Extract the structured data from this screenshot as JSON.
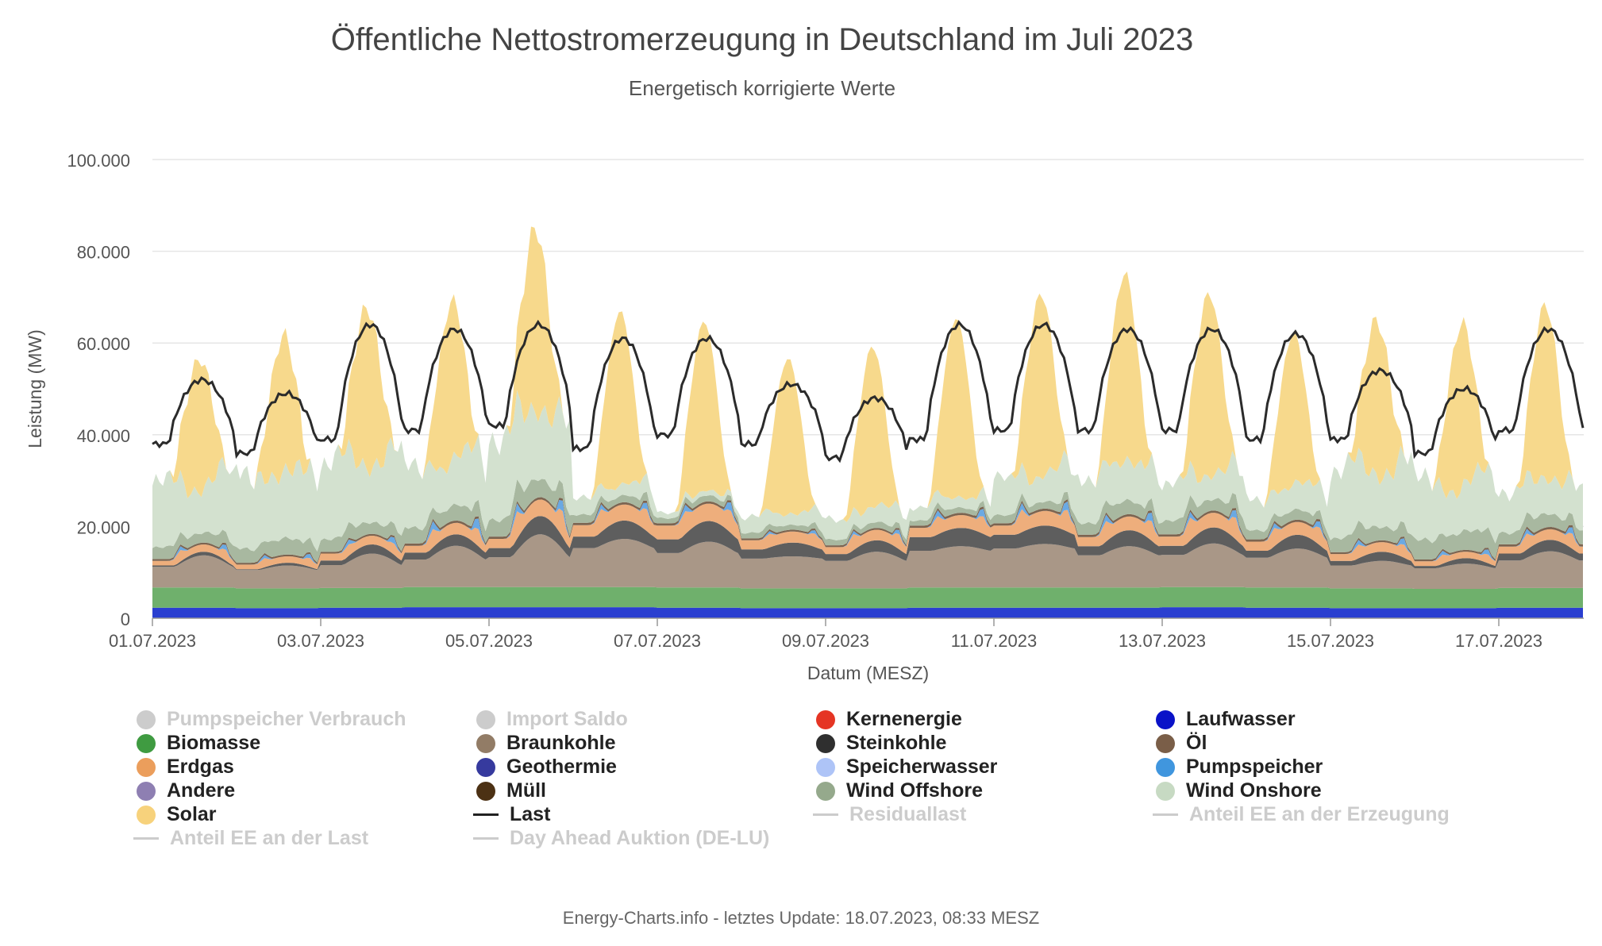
{
  "chart_data": {
    "type": "area",
    "title": "Öffentliche Nettostromerzeugung in Deutschland im Juli 2023",
    "subtitle": "Energetisch korrigierte Werte",
    "xlabel": "Datum (MESZ)",
    "ylabel": "Leistung (MW)",
    "ylim": [
      0,
      100000
    ],
    "yticks": [
      "0",
      "20.000",
      "40.000",
      "60.000",
      "80.000",
      "100.000"
    ],
    "xticks": [
      "01.07.2023",
      "03.07.2023",
      "05.07.2023",
      "07.07.2023",
      "09.07.2023",
      "11.07.2023",
      "13.07.2023",
      "15.07.2023",
      "17.07.2023"
    ],
    "grid": true,
    "legend_position": "bottom",
    "stack_order": [
      "Laufwasser",
      "Biomasse",
      "Braunkohle",
      "Steinkohle",
      "Erdgas",
      "Pumpspeicher",
      "Öl",
      "Wind Offshore",
      "Wind Onshore",
      "Solar"
    ],
    "colors": {
      "Laufwasser": "#2a3fd0",
      "Biomasse": "#6fb06c",
      "Braunkohle": "#a99787",
      "Steinkohle": "#5e5e5e",
      "Erdgas": "#eeae7c",
      "Pumpspeicher": "#6aa9e3",
      "Öl": "#7c6450",
      "Wind Offshore": "#a8b8a0",
      "Wind Onshore": "#d3e1cf",
      "Solar": "#f7d98c",
      "Last": "#2b2b2b"
    },
    "daily": {
      "dates": [
        "01.07.2023",
        "02.07.2023",
        "03.07.2023",
        "04.07.2023",
        "05.07.2023",
        "06.07.2023",
        "07.07.2023",
        "08.07.2023",
        "09.07.2023",
        "10.07.2023",
        "11.07.2023",
        "12.07.2023",
        "13.07.2023",
        "14.07.2023",
        "15.07.2023",
        "16.07.2023",
        "17.07.2023"
      ],
      "Laufwasser": [
        2300,
        2200,
        2300,
        2400,
        2400,
        2400,
        2300,
        2200,
        2200,
        2300,
        2300,
        2300,
        2400,
        2300,
        2200,
        2200,
        2300
      ],
      "Biomasse": [
        4400,
        4300,
        4300,
        4400,
        4400,
        4400,
        4400,
        4300,
        4300,
        4400,
        4400,
        4400,
        4400,
        4400,
        4300,
        4200,
        4300
      ],
      "Braunkohle_min": [
        4500,
        4000,
        5000,
        6000,
        6500,
        8500,
        7500,
        6500,
        6000,
        8000,
        8500,
        7000,
        7000,
        6500,
        5000,
        4500,
        6000
      ],
      "Braunkohle_max": [
        7000,
        5000,
        7500,
        9000,
        11500,
        10500,
        10000,
        7000,
        8000,
        9000,
        9500,
        9000,
        9500,
        8500,
        6000,
        5500,
        8000
      ],
      "Steinkohle_min": [
        300,
        200,
        1000,
        1500,
        2000,
        2500,
        3000,
        2000,
        1500,
        3000,
        3000,
        2000,
        2000,
        1500,
        1000,
        500,
        1500
      ],
      "Steinkohle_max": [
        800,
        600,
        2000,
        2500,
        4000,
        4000,
        4500,
        3000,
        2500,
        4000,
        4000,
        3500,
        3500,
        3000,
        2000,
        1200,
        2500
      ],
      "Erdgas_min": [
        1000,
        1000,
        1500,
        1500,
        2000,
        2500,
        3000,
        2000,
        1500,
        2000,
        2000,
        2000,
        2000,
        2000,
        1500,
        1000,
        1500
      ],
      "Erdgas_max": [
        2500,
        2000,
        2500,
        4000,
        6000,
        5000,
        5000,
        3000,
        3500,
        4000,
        5000,
        4500,
        5000,
        4000,
        3000,
        2000,
        3500
      ],
      "Pumpspeicher_max": [
        1200,
        1000,
        1500,
        2500,
        2500,
        1500,
        2000,
        800,
        1000,
        1800,
        2000,
        2000,
        1800,
        1500,
        1500,
        1200,
        1500
      ],
      "Öl": [
        400,
        400,
        400,
        500,
        500,
        500,
        500,
        400,
        400,
        500,
        500,
        500,
        500,
        500,
        400,
        400,
        500
      ],
      "Wind Offshore": [
        3000,
        4000,
        3500,
        4000,
        5000,
        2000,
        1500,
        1500,
        1500,
        1500,
        2000,
        3500,
        3500,
        2500,
        4000,
        5000,
        3500
      ],
      "Wind Onshore": [
        16000,
        20000,
        20000,
        15000,
        22000,
        4000,
        1500,
        4000,
        5000,
        3500,
        9000,
        12000,
        9000,
        8000,
        18000,
        15000,
        11000
      ],
      "Solar_peak": [
        29000,
        30000,
        35000,
        35000,
        40000,
        38000,
        37000,
        34000,
        35000,
        39000,
        40000,
        41000,
        40000,
        33000,
        34000,
        36000,
        38000
      ],
      "Last_min": [
        38000,
        36000,
        39000,
        41000,
        42000,
        37000,
        40000,
        38000,
        35000,
        39000,
        41000,
        41000,
        41000,
        39000,
        39000,
        36000,
        41000
      ],
      "Last_max": [
        52000,
        49000,
        64000,
        63000,
        64000,
        61000,
        61000,
        51000,
        48000,
        64000,
        64000,
        63000,
        63000,
        62000,
        54000,
        50000,
        63000
      ]
    },
    "series": [
      {
        "name": "Pumpspeicher Verbrauch",
        "visible": false
      },
      {
        "name": "Import Saldo",
        "visible": false
      },
      {
        "name": "Kernenergie",
        "visible": true
      },
      {
        "name": "Laufwasser",
        "visible": true
      },
      {
        "name": "Biomasse",
        "visible": true
      },
      {
        "name": "Braunkohle",
        "visible": true
      },
      {
        "name": "Steinkohle",
        "visible": true
      },
      {
        "name": "Öl",
        "visible": true
      },
      {
        "name": "Erdgas",
        "visible": true
      },
      {
        "name": "Geothermie",
        "visible": true
      },
      {
        "name": "Speicherwasser",
        "visible": true
      },
      {
        "name": "Pumpspeicher",
        "visible": true
      },
      {
        "name": "Andere",
        "visible": true
      },
      {
        "name": "Müll",
        "visible": true
      },
      {
        "name": "Wind Offshore",
        "visible": true
      },
      {
        "name": "Wind Onshore",
        "visible": true
      },
      {
        "name": "Solar",
        "visible": true
      },
      {
        "name": "Last",
        "visible": true
      },
      {
        "name": "Residuallast",
        "visible": false
      },
      {
        "name": "Anteil EE an der Erzeugung",
        "visible": false
      },
      {
        "name": "Anteil EE an der Last",
        "visible": false
      },
      {
        "name": "Day Ahead Auktion (DE-LU)",
        "visible": false
      }
    ]
  },
  "legend": [
    {
      "label": "Pumpspeicher Verbrauch",
      "color": "#cccccc",
      "symbol": "dot",
      "visible": false
    },
    {
      "label": "Import Saldo",
      "color": "#cccccc",
      "symbol": "dot",
      "visible": false
    },
    {
      "label": "Kernenergie",
      "color": "#e53524",
      "symbol": "dot",
      "visible": true
    },
    {
      "label": "Laufwasser",
      "color": "#0a12c8",
      "symbol": "dot",
      "visible": true
    },
    {
      "label": "Biomasse",
      "color": "#3f9b41",
      "symbol": "dot",
      "visible": true
    },
    {
      "label": "Braunkohle",
      "color": "#927c66",
      "symbol": "dot",
      "visible": true
    },
    {
      "label": "Steinkohle",
      "color": "#2f2f2f",
      "symbol": "dot",
      "visible": true
    },
    {
      "label": "Öl",
      "color": "#7a5e48",
      "symbol": "dot",
      "visible": true
    },
    {
      "label": "Erdgas",
      "color": "#eb9e5c",
      "symbol": "dot",
      "visible": true
    },
    {
      "label": "Geothermie",
      "color": "#363a9e",
      "symbol": "dot",
      "visible": true
    },
    {
      "label": "Speicherwasser",
      "color": "#aec4f7",
      "symbol": "dot",
      "visible": true
    },
    {
      "label": "Pumpspeicher",
      "color": "#4096de",
      "symbol": "dot",
      "visible": true
    },
    {
      "label": "Andere",
      "color": "#8e7fb2",
      "symbol": "dot",
      "visible": true
    },
    {
      "label": "Müll",
      "color": "#4c3114",
      "symbol": "dot",
      "visible": true
    },
    {
      "label": "Wind Offshore",
      "color": "#95a98c",
      "symbol": "dot",
      "visible": true
    },
    {
      "label": "Wind Onshore",
      "color": "#c7dac3",
      "symbol": "dot",
      "visible": true
    },
    {
      "label": "Solar",
      "color": "#f7d27c",
      "symbol": "dot",
      "visible": true
    },
    {
      "label": "Last",
      "color": "#222222",
      "symbol": "line",
      "visible": true
    },
    {
      "label": "Residuallast",
      "color": "#cccccc",
      "symbol": "line",
      "visible": false
    },
    {
      "label": "Anteil EE an der Erzeugung",
      "color": "#cccccc",
      "symbol": "line",
      "visible": false
    },
    {
      "label": "Anteil EE an der Last",
      "color": "#cccccc",
      "symbol": "line",
      "visible": false
    },
    {
      "label": "Day Ahead Auktion (DE-LU)",
      "color": "#cccccc",
      "symbol": "line",
      "visible": false
    }
  ],
  "footer": "Energy-Charts.info - letztes Update: 18.07.2023, 08:33 MESZ"
}
